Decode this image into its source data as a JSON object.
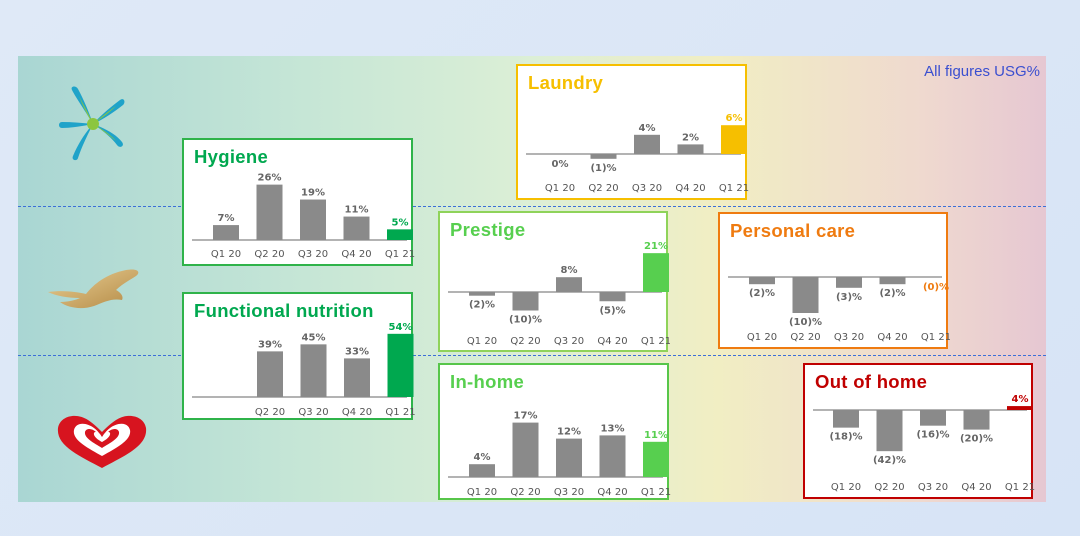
{
  "note": "All figures USG%",
  "logos": [
    {
      "name": "omo-logo"
    },
    {
      "name": "dove-logo"
    },
    {
      "name": "heartbrand-logo"
    }
  ],
  "colors": {
    "bar_gray": "#8a8a8a",
    "green_dark": "#00a84f",
    "green_light": "#57cf4f",
    "yellow": "#f6bf00",
    "orange": "#ef7b10",
    "red": "#c00000"
  },
  "chart_data": [
    {
      "id": "laundry",
      "type": "bar",
      "title": "Laundry",
      "categories": [
        "Q1 20",
        "Q2 20",
        "Q3 20",
        "Q4 20",
        "Q1 21"
      ],
      "values": [
        0,
        -1,
        4,
        2,
        6
      ],
      "labels": [
        "0%",
        "(1)%",
        "4%",
        "2%",
        "6%"
      ],
      "highlight_color": "#f6bf00",
      "border_color": "#f6bf00"
    },
    {
      "id": "hygiene",
      "type": "bar",
      "title": "Hygiene",
      "categories": [
        "Q1 20",
        "Q2 20",
        "Q3 20",
        "Q4 20",
        "Q1 21"
      ],
      "values": [
        7,
        26,
        19,
        11,
        5
      ],
      "labels": [
        "7%",
        "26%",
        "19%",
        "11%",
        "5%"
      ],
      "highlight_color": "#00a84f",
      "border_color": "#2fb34a"
    },
    {
      "id": "functional",
      "type": "bar",
      "title": "Functional nutrition",
      "categories": [
        "Q2 20",
        "Q3 20",
        "Q4 20",
        "Q1 21"
      ],
      "values": [
        39,
        45,
        33,
        54
      ],
      "labels": [
        "39%",
        "45%",
        "33%",
        "54%"
      ],
      "highlight_color": "#00a84f",
      "border_color": "#2fb34a"
    },
    {
      "id": "prestige",
      "type": "bar",
      "title": "Prestige",
      "categories": [
        "Q1 20",
        "Q2 20",
        "Q3 20",
        "Q4 20",
        "Q1 21"
      ],
      "values": [
        -2,
        -10,
        8,
        -5,
        21
      ],
      "labels": [
        "(2)%",
        "(10)%",
        "8%",
        "(5)%",
        "21%"
      ],
      "highlight_color": "#57cf4f",
      "border_color": "#8fd35a"
    },
    {
      "id": "inhome",
      "type": "bar",
      "title": "In-home",
      "categories": [
        "Q1 20",
        "Q2 20",
        "Q3 20",
        "Q4 20",
        "Q1 21"
      ],
      "values": [
        4,
        17,
        12,
        13,
        11
      ],
      "labels": [
        "4%",
        "17%",
        "12%",
        "13%",
        "11%"
      ],
      "highlight_color": "#57cf4f",
      "border_color": "#57c64a"
    },
    {
      "id": "personal",
      "type": "bar",
      "title": "Personal care",
      "categories": [
        "Q1 20",
        "Q2 20",
        "Q3 20",
        "Q4 20",
        "Q1 21"
      ],
      "values": [
        -2,
        -10,
        -3,
        -2,
        0
      ],
      "labels": [
        "(2)%",
        "(10)%",
        "(3)%",
        "(2)%",
        "(0)%"
      ],
      "highlight_color": "#ef7b10",
      "border_color": "#ef7b10"
    },
    {
      "id": "outofhome",
      "type": "bar",
      "title": "Out of home",
      "categories": [
        "Q1 20",
        "Q2 20",
        "Q3 20",
        "Q4 20",
        "Q1 21"
      ],
      "values": [
        -18,
        -42,
        -16,
        -20,
        4
      ],
      "labels": [
        "(18)%",
        "(42)%",
        "(16)%",
        "(20)%",
        "4%"
      ],
      "highlight_color": "#c00000",
      "border_color": "#c00000"
    }
  ]
}
